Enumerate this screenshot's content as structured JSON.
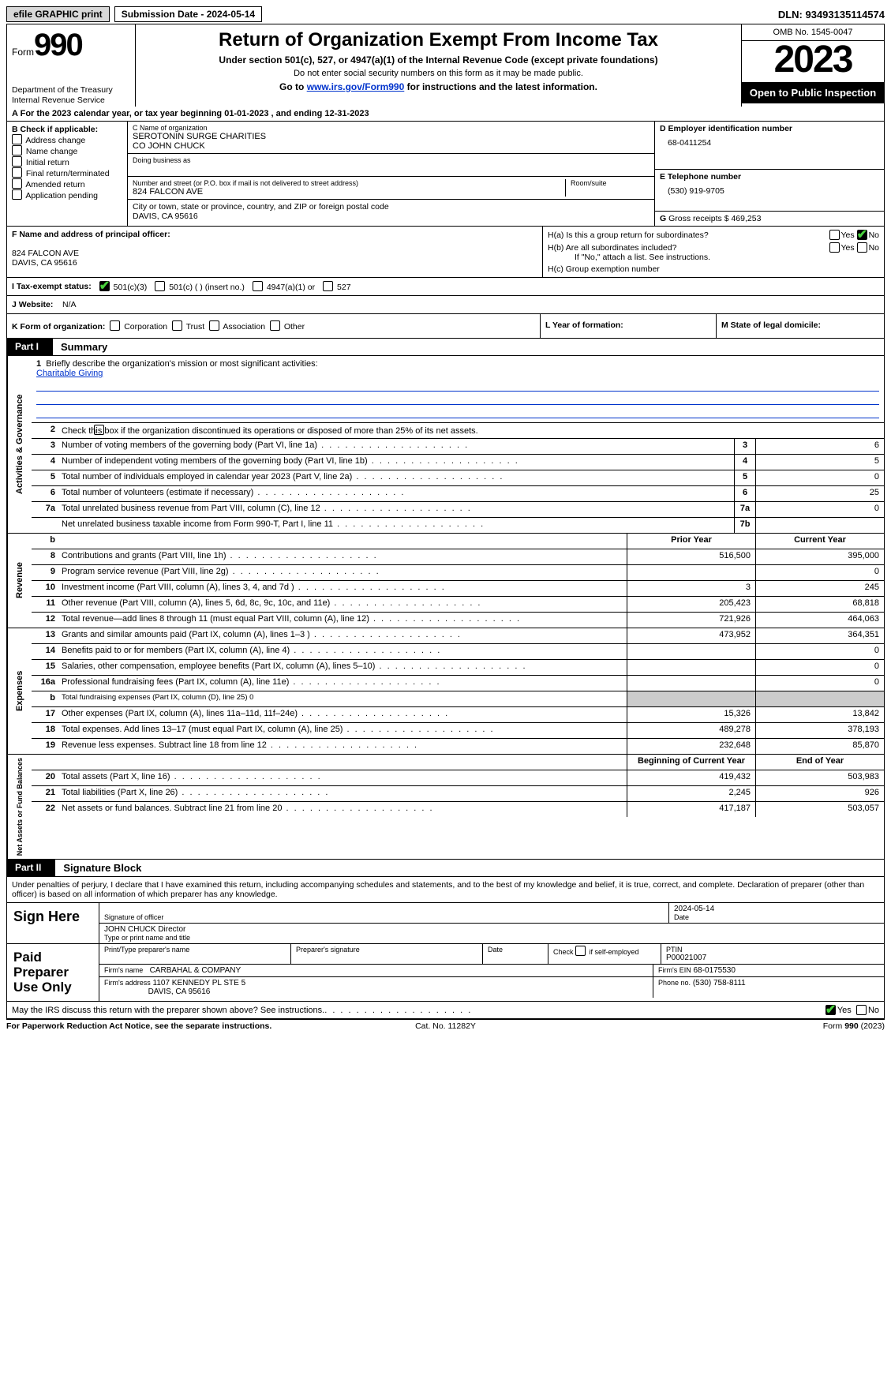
{
  "topbar": {
    "efile": "efile GRAPHIC print",
    "submission": "Submission Date - 2024-05-14",
    "dln": "DLN: 93493135114574"
  },
  "header": {
    "form_word": "Form",
    "form_num": "990",
    "title": "Return of Organization Exempt From Income Tax",
    "subtitle": "Under section 501(c), 527, or 4947(a)(1) of the Internal Revenue Code (except private foundations)",
    "nossn": "Do not enter social security numbers on this form as it may be made public.",
    "goto_pre": "Go to ",
    "goto_link": "www.irs.gov/Form990",
    "goto_post": " for instructions and the latest information.",
    "dept": "Department of the Treasury\nInternal Revenue Service",
    "omb": "OMB No. 1545-0047",
    "year": "2023",
    "open": "Open to Public Inspection"
  },
  "lineA": "For the 2023 calendar year, or tax year beginning 01-01-2023   , and ending 12-31-2023",
  "boxB": {
    "label": "B Check if applicable:",
    "items": [
      "Address change",
      "Name change",
      "Initial return",
      "Final return/terminated",
      "Amended return",
      "Application pending"
    ]
  },
  "boxC": {
    "name_lbl": "C Name of organization",
    "name1": "SEROTONIN SURGE CHARITIES",
    "name2": "CO JOHN CHUCK",
    "dba_lbl": "Doing business as",
    "street_lbl": "Number and street (or P.O. box if mail is not delivered to street address)",
    "room_lbl": "Room/suite",
    "street": "824 FALCON AVE",
    "city_lbl": "City or town, state or province, country, and ZIP or foreign postal code",
    "city": "DAVIS, CA  95616"
  },
  "boxD": {
    "lbl": "D Employer identification number",
    "val": "68-0411254"
  },
  "boxE": {
    "lbl": "E Telephone number",
    "val": "(530) 919-9705"
  },
  "boxG": {
    "lbl": "G",
    "txt": "Gross receipts $",
    "val": "469,253"
  },
  "boxF": {
    "lbl": "F  Name and address of principal officer:",
    "l1": "824 FALCON AVE",
    "l2": "DAVIS, CA  95616"
  },
  "boxH": {
    "a": "H(a)  Is this a group return for subordinates?",
    "b": "H(b)  Are all subordinates included?",
    "bnote": "If \"No,\" attach a list. See instructions.",
    "c": "H(c)  Group exemption number",
    "yes": "Yes",
    "no": "No"
  },
  "rowI": {
    "lbl": "I   Tax-exempt status:",
    "c3": "501(c)(3)",
    "c": "501(c) (   ) (insert no.)",
    "a4947": "4947(a)(1) or",
    "s527": "527"
  },
  "rowJ": {
    "lbl": "J   Website:",
    "val": "N/A"
  },
  "rowK": {
    "lbl": "K Form of organization:",
    "opts": [
      "Corporation",
      "Trust",
      "Association",
      "Other"
    ]
  },
  "rowL": "L Year of formation:",
  "rowM": "M State of legal domicile:",
  "part1": {
    "pt": "Part I",
    "name": "Summary"
  },
  "mission": {
    "num": "1",
    "lbl": "Briefly describe the organization's mission or most significant activities:",
    "val": "Charitable Giving"
  },
  "gov": {
    "vlabel": "Activities & Governance",
    "r2": "Check this box           if the organization discontinued its operations or disposed of more than 25% of its net assets.",
    "r3": "Number of voting members of the governing body (Part VI, line 1a)",
    "r4": "Number of independent voting members of the governing body (Part VI, line 1b)",
    "r5": "Total number of individuals employed in calendar year 2023 (Part V, line 2a)",
    "r6": "Total number of volunteers (estimate if necessary)",
    "r7a": "Total unrelated business revenue from Part VIII, column (C), line 12",
    "r7b": "Net unrelated business taxable income from Form 990-T, Part I, line 11",
    "v3": "6",
    "v4": "5",
    "v5": "0",
    "v6": "25",
    "v7a": "0",
    "v7b": ""
  },
  "colhdr": {
    "b": "b",
    "prior": "Prior Year",
    "current": "Current Year"
  },
  "rev": {
    "vlabel": "Revenue",
    "rows": [
      {
        "n": "8",
        "d": "Contributions and grants (Part VIII, line 1h)",
        "p": "516,500",
        "c": "395,000"
      },
      {
        "n": "9",
        "d": "Program service revenue (Part VIII, line 2g)",
        "p": "",
        "c": "0"
      },
      {
        "n": "10",
        "d": "Investment income (Part VIII, column (A), lines 3, 4, and 7d )",
        "p": "3",
        "c": "245"
      },
      {
        "n": "11",
        "d": "Other revenue (Part VIII, column (A), lines 5, 6d, 8c, 9c, 10c, and 11e)",
        "p": "205,423",
        "c": "68,818"
      },
      {
        "n": "12",
        "d": "Total revenue—add lines 8 through 11 (must equal Part VIII, column (A), line 12)",
        "p": "721,926",
        "c": "464,063"
      }
    ]
  },
  "exp": {
    "vlabel": "Expenses",
    "rows": [
      {
        "n": "13",
        "d": "Grants and similar amounts paid (Part IX, column (A), lines 1–3 )",
        "p": "473,952",
        "c": "364,351"
      },
      {
        "n": "14",
        "d": "Benefits paid to or for members (Part IX, column (A), line 4)",
        "p": "",
        "c": "0"
      },
      {
        "n": "15",
        "d": "Salaries, other compensation, employee benefits (Part IX, column (A), lines 5–10)",
        "p": "",
        "c": "0"
      },
      {
        "n": "16a",
        "d": "Professional fundraising fees (Part IX, column (A), line 11e)",
        "p": "",
        "c": "0"
      },
      {
        "n": "b",
        "d": "Total fundraising expenses (Part IX, column (D), line 25) 0",
        "p": "SHADE",
        "c": "SHADE",
        "small": true
      },
      {
        "n": "17",
        "d": "Other expenses (Part IX, column (A), lines 11a–11d, 11f–24e)",
        "p": "15,326",
        "c": "13,842"
      },
      {
        "n": "18",
        "d": "Total expenses. Add lines 13–17 (must equal Part IX, column (A), line 25)",
        "p": "489,278",
        "c": "378,193"
      },
      {
        "n": "19",
        "d": "Revenue less expenses. Subtract line 18 from line 12",
        "p": "232,648",
        "c": "85,870"
      }
    ]
  },
  "net": {
    "vlabel": "Net Assets or Fund Balances",
    "hdr_begin": "Beginning of Current Year",
    "hdr_end": "End of Year",
    "rows": [
      {
        "n": "20",
        "d": "Total assets (Part X, line 16)",
        "p": "419,432",
        "c": "503,983"
      },
      {
        "n": "21",
        "d": "Total liabilities (Part X, line 26)",
        "p": "2,245",
        "c": "926"
      },
      {
        "n": "22",
        "d": "Net assets or fund balances. Subtract line 21 from line 20",
        "p": "417,187",
        "c": "503,057"
      }
    ]
  },
  "part2": {
    "pt": "Part II",
    "name": "Signature Block"
  },
  "perjury": "Under penalties of perjury, I declare that I have examined this return, including accompanying schedules and statements, and to the best of my knowledge and belief, it is true, correct, and complete. Declaration of preparer (other than officer) is based on all information of which preparer has any knowledge.",
  "sign": {
    "here": "Sign Here",
    "sig_lbl": "Signature of officer",
    "date_lbl": "Date",
    "date_val": "2024-05-14",
    "name_val": "JOHN CHUCK  Director",
    "name_lbl": "Type or print name and title"
  },
  "paid": {
    "label": "Paid Preparer Use Only",
    "pt_name": "Print/Type preparer's name",
    "pt_sig": "Preparer's signature",
    "pt_date": "Date",
    "pt_self": "Check         if self-employed",
    "ptin_lbl": "PTIN",
    "ptin": "P00021007",
    "firm_lbl": "Firm's name",
    "firm": "CARBAHAL & COMPANY",
    "ein_lbl": "Firm's EIN",
    "ein": "68-0175530",
    "addr_lbl": "Firm's address",
    "addr1": "1107 KENNEDY PL STE 5",
    "addr2": "DAVIS, CA  95616",
    "phone_lbl": "Phone no.",
    "phone": "(530) 758-8111"
  },
  "discuss": {
    "q": "May the IRS discuss this return with the preparer shown above? See instructions.",
    "yes": "Yes",
    "no": "No"
  },
  "footer": {
    "l": "For Paperwork Reduction Act Notice, see the separate instructions.",
    "m": "Cat. No. 11282Y",
    "r": "Form 990 (2023)"
  }
}
